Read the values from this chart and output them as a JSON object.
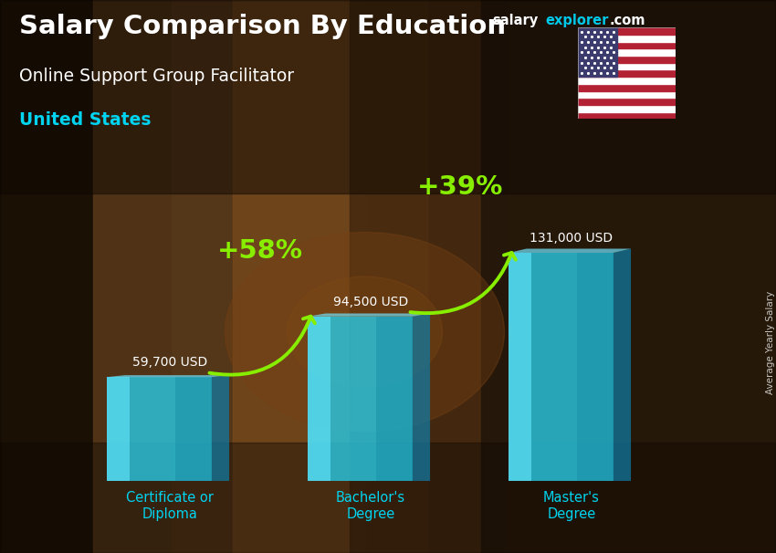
{
  "title_line1": "Salary Comparison By Education",
  "subtitle_line1": "Online Support Group Facilitator",
  "subtitle_line2": "United States",
  "ylabel": "Average Yearly Salary",
  "categories": [
    "Certificate or\nDiploma",
    "Bachelor's\nDegree",
    "Master's\nDegree"
  ],
  "values": [
    59700,
    94500,
    131000
  ],
  "value_labels": [
    "59,700 USD",
    "94,500 USD",
    "131,000 USD"
  ],
  "pct_labels": [
    "+58%",
    "+39%"
  ],
  "bar_color_front": "#29c6e0",
  "bar_color_light": "#5ee0f5",
  "bar_color_dark": "#1a90a8",
  "bar_color_side": "#1278a0",
  "bar_alpha": 0.82,
  "bg_color1": "#7a4a20",
  "bg_color2": "#5a3510",
  "bg_overlay": "#000000",
  "bg_overlay_alpha": 0.38,
  "title_color": "#ffffff",
  "subtitle_color": "#ffffff",
  "country_color": "#00d4f0",
  "value_label_color": "#ffffff",
  "pct_color": "#88ee00",
  "arrow_color": "#88ee00",
  "brand_salary_color": "#ffffff",
  "brand_explorer_color": "#00c8e8",
  "brand_com_color": "#ffffff",
  "bar_positions": [
    1.5,
    4.0,
    6.5
  ],
  "bar_width": 1.3,
  "ylim_max": 165000,
  "figsize": [
    8.5,
    6.06
  ],
  "dpi": 100
}
